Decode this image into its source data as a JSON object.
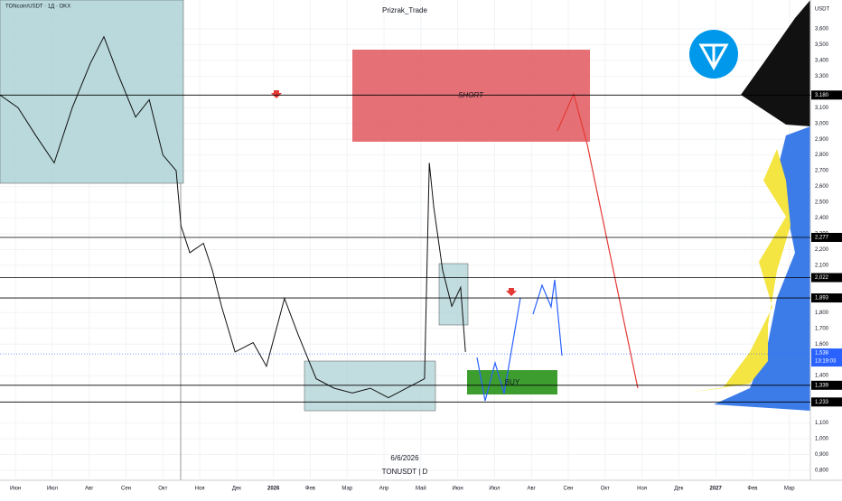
{
  "header": {
    "symbol": "TONcoin/USDT · 1Д · OKX",
    "author": "Prizrak_Trade",
    "currency": "USDT",
    "countdown": "13:19:03",
    "date_note": "6/6/2026",
    "ticker": "TONUSDT | D"
  },
  "chart_data": {
    "type": "line",
    "color": "#111111",
    "x": [
      -0.42,
      0.07,
      0.56,
      1.05,
      1.54,
      2.03,
      2.4,
      2.77,
      3.26,
      3.63,
      4.0,
      4.36,
      4.49,
      4.73,
      5.1,
      5.34,
      5.59,
      5.96,
      6.45,
      6.81,
      7.3,
      7.67,
      8.16,
      8.65,
      9.14,
      9.63,
      10.12,
      10.61,
      11.1,
      11.23,
      11.35,
      11.59,
      11.84,
      12.08,
      12.21
    ],
    "values": [
      3.18,
      3.1,
      2.92,
      2.75,
      3.1,
      3.38,
      3.55,
      3.32,
      3.04,
      3.15,
      2.8,
      2.7,
      2.35,
      2.18,
      2.24,
      2.07,
      1.84,
      1.55,
      1.61,
      1.46,
      1.89,
      1.66,
      1.38,
      1.32,
      1.29,
      1.32,
      1.26,
      1.32,
      1.38,
      2.75,
      2.47,
      2.07,
      1.84,
      1.96,
      1.55
    ],
    "xlim": [
      -0.42,
      21.57
    ],
    "ylim": [
      0.748,
      3.783
    ],
    "xticks": [
      {
        "value": 0,
        "label": "Июн"
      },
      {
        "value": 1,
        "label": "Июл"
      },
      {
        "value": 2,
        "label": "Авг"
      },
      {
        "value": 3,
        "label": "Сен"
      },
      {
        "value": 4,
        "label": "Окт"
      },
      {
        "value": 5,
        "label": "Ноя"
      },
      {
        "value": 6,
        "label": "Дек"
      },
      {
        "value": 7,
        "label": "2026"
      },
      {
        "value": 8,
        "label": "Фев"
      },
      {
        "value": 9,
        "label": "Мар"
      },
      {
        "value": 10,
        "label": "Апр"
      },
      {
        "value": 11,
        "label": "Май"
      },
      {
        "value": 12,
        "label": "Июн"
      },
      {
        "value": 13,
        "label": "Июл"
      },
      {
        "value": 14,
        "label": "Авг"
      },
      {
        "value": 15,
        "label": "Сен"
      },
      {
        "value": 16,
        "label": "Окт"
      },
      {
        "value": 17,
        "label": "Ноя"
      },
      {
        "value": 18,
        "label": "Дек"
      },
      {
        "value": 19,
        "label": "2027"
      },
      {
        "value": 20,
        "label": "Фев"
      },
      {
        "value": 21,
        "label": "Мар"
      }
    ],
    "yticks": [
      {
        "value": 3.6,
        "label": "3,600"
      },
      {
        "value": 3.5,
        "label": "3,500"
      },
      {
        "value": 3.4,
        "label": "3,400"
      },
      {
        "value": 3.3,
        "label": "3,300"
      },
      {
        "value": 3.1,
        "label": "3,100"
      },
      {
        "value": 3.0,
        "label": "3,000"
      },
      {
        "value": 2.9,
        "label": "2,900"
      },
      {
        "value": 2.8,
        "label": "2,800"
      },
      {
        "value": 2.7,
        "label": "2,700"
      },
      {
        "value": 2.6,
        "label": "2,600"
      },
      {
        "value": 2.5,
        "label": "2,500"
      },
      {
        "value": 2.4,
        "label": "2,400"
      },
      {
        "value": 2.3,
        "label": "2,300"
      },
      {
        "value": 2.2,
        "label": "2,200"
      },
      {
        "value": 2.1,
        "label": "2,100"
      },
      {
        "value": 1.8,
        "label": "1,800"
      },
      {
        "value": 1.7,
        "label": "1,700"
      },
      {
        "value": 1.6,
        "label": "1,600"
      },
      {
        "value": 1.4,
        "label": "1,400"
      },
      {
        "value": 1.1,
        "label": "1,100"
      },
      {
        "value": 1.0,
        "label": "1,000"
      },
      {
        "value": 0.9,
        "label": "0,900"
      },
      {
        "value": 0.8,
        "label": "0,800"
      }
    ],
    "levels": [
      {
        "value": 3.18,
        "label": "3,180"
      },
      {
        "value": 2.277,
        "label": "2,277"
      },
      {
        "value": 2.022,
        "label": "2,022"
      },
      {
        "value": 1.893,
        "label": "1,893"
      },
      {
        "value": 1.339,
        "label": "1,339"
      },
      {
        "value": 1.233,
        "label": "1,233"
      }
    ],
    "last_price": {
      "value": 1.538,
      "label": "1,538"
    },
    "annotations": [
      "SHORT",
      "BUY"
    ]
  }
}
